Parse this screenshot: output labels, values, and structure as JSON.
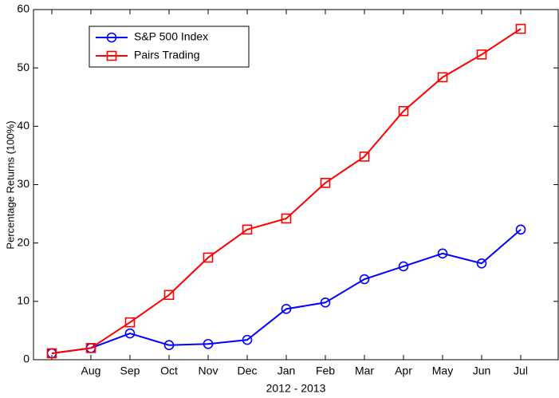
{
  "chart_data": {
    "type": "line",
    "x_label": "2012 - 2013",
    "y_label": "Percentage Returns (100%)",
    "categories": [
      null,
      "Aug",
      "Sep",
      "Oct",
      "Nov",
      "Dec",
      "Jan",
      "Feb",
      "Mar",
      "Apr",
      "May",
      "Jun",
      "Jul"
    ],
    "series": [
      {
        "name": "S&P 500 Index",
        "color": "#0000ff",
        "marker": "circle",
        "values": [
          1.1,
          2.0,
          4.5,
          2.5,
          2.7,
          3.4,
          8.7,
          9.8,
          13.8,
          16.0,
          18.2,
          16.5,
          22.3
        ]
      },
      {
        "name": "Pairs Trading",
        "color": "#ff0000",
        "marker": "square",
        "values": [
          1.1,
          2.0,
          6.4,
          11.1,
          17.5,
          22.3,
          24.2,
          30.3,
          34.8,
          42.6,
          48.4,
          52.3,
          56.7
        ]
      }
    ],
    "ylim": [
      0,
      60
    ],
    "yticks": [
      0,
      10,
      20,
      30,
      40,
      50,
      60
    ],
    "legend": "upper left",
    "grid": false
  }
}
